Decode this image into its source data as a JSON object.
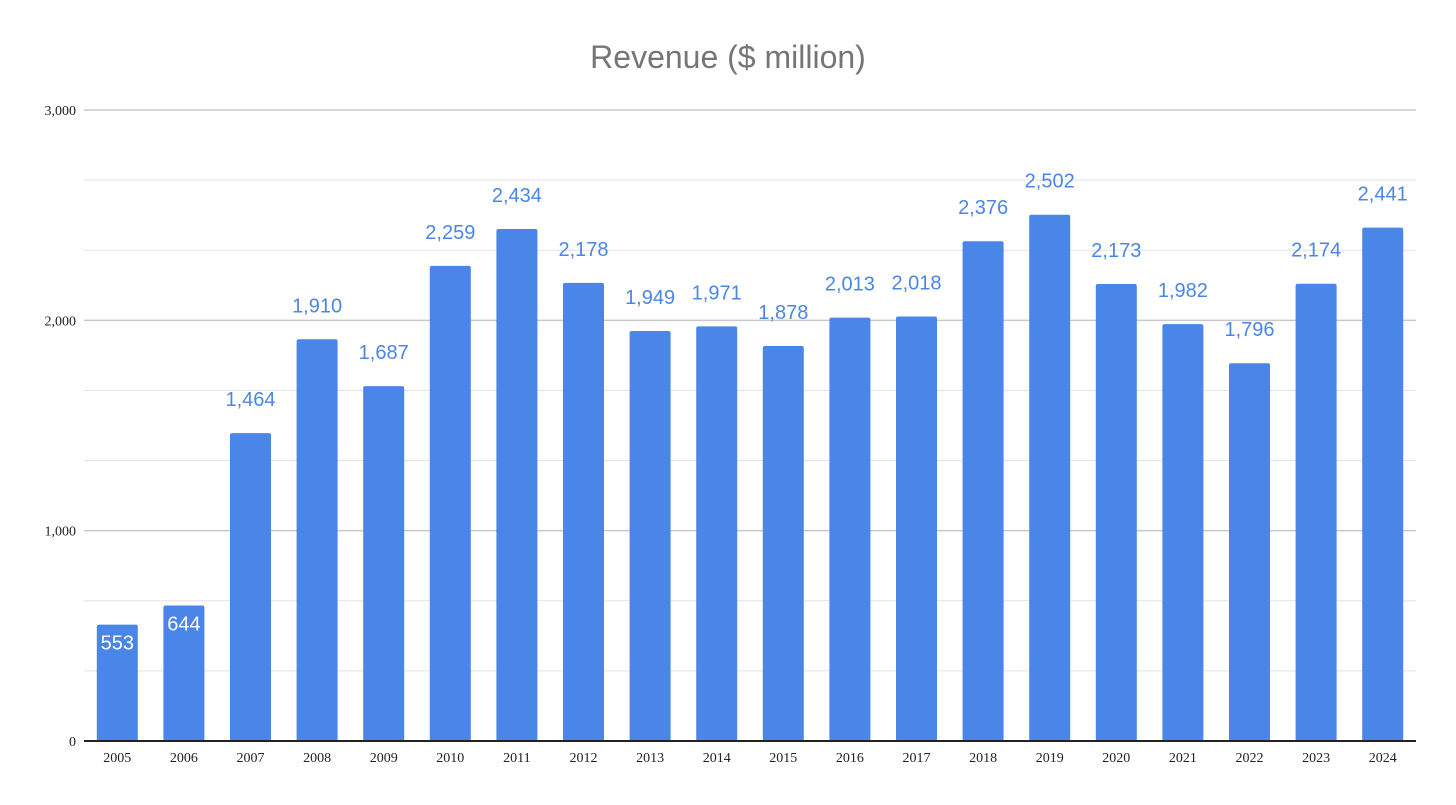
{
  "chart_data": {
    "type": "bar",
    "title": "Revenue ($ million)",
    "xlabel": "",
    "ylabel": "",
    "categories": [
      "2005",
      "2006",
      "2007",
      "2008",
      "2009",
      "2010",
      "2011",
      "2012",
      "2013",
      "2014",
      "2015",
      "2016",
      "2017",
      "2018",
      "2019",
      "2020",
      "2021",
      "2022",
      "2023",
      "2024"
    ],
    "values": [
      553,
      644,
      1464,
      1910,
      1687,
      2259,
      2434,
      2178,
      1949,
      1971,
      1878,
      2013,
      2018,
      2376,
      2502,
      2173,
      1982,
      1796,
      2174,
      2441
    ],
    "data_labels": [
      "553",
      "644",
      "1,464",
      "1,910",
      "1,687",
      "2,259",
      "2,434",
      "2,178",
      "1,949",
      "1,971",
      "1,878",
      "2,013",
      "2,018",
      "2,376",
      "2,502",
      "2,173",
      "1,982",
      "1,796",
      "2,174",
      "2,441"
    ],
    "y_ticks": [
      0,
      1000,
      2000,
      3000
    ],
    "y_tick_labels": [
      "0",
      "1,000",
      "2,000",
      "3,000"
    ],
    "y_minor_step": 333.33,
    "ylim": [
      0,
      3000
    ],
    "grid": true,
    "legend": "none",
    "bar_color": "#4a86e8",
    "label_color_outside": "#4a86e8",
    "label_color_inside": "#ffffff"
  }
}
